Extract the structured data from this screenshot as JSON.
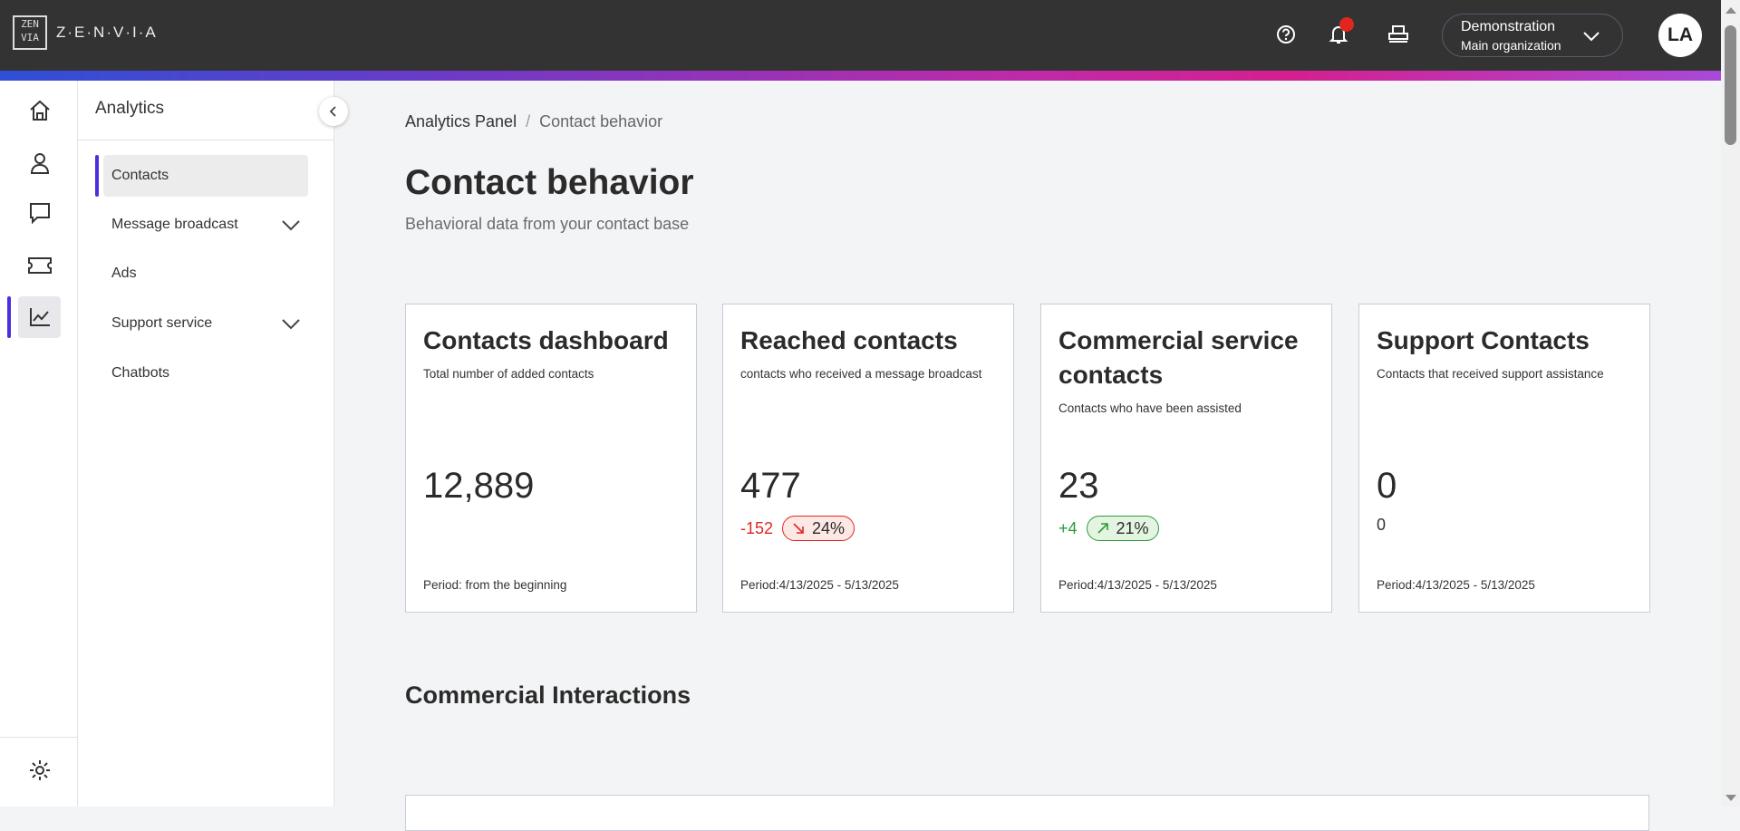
{
  "header": {
    "logo_mark": "ZEN VIA",
    "logo_text": "Z·E·N·V·I·A",
    "org_name": "Demonstration",
    "org_sub": "Main organization",
    "avatar_initials": "LA",
    "notification_dot_color": "#e0261f",
    "icons": [
      "help-icon",
      "bell-icon",
      "printer-icon",
      "chevron-down-icon"
    ]
  },
  "rail": {
    "items": [
      "home-icon",
      "user-icon",
      "chat-icon",
      "ticket-icon",
      "chart-icon",
      "gear-icon"
    ],
    "active": "chart-icon"
  },
  "sidebar": {
    "title": "Analytics",
    "items": [
      {
        "label": "Contacts",
        "active": true
      },
      {
        "label": "Message broadcast",
        "expandable": true
      },
      {
        "label": "Ads"
      },
      {
        "label": "Support service",
        "expandable": true
      },
      {
        "label": "Chatbots"
      }
    ]
  },
  "breadcrumb": {
    "parent": "Analytics Panel",
    "separator": "/",
    "current": "Contact behavior"
  },
  "page": {
    "title": "Contact behavior",
    "subtitle": "Behavioral data from your contact base"
  },
  "cards": [
    {
      "title": "Contacts dashboard",
      "desc": "Total number of added contacts",
      "value": "12,889",
      "period": "Period: from the beginning"
    },
    {
      "title": "Reached contacts",
      "desc": "contacts who received a message broadcast",
      "value": "477",
      "delta": "-152",
      "badge": "24%",
      "trend": "down",
      "period": "Period:4/13/2025 - 5/13/2025"
    },
    {
      "title": "Commercial service contacts",
      "desc": "Contacts who have been assisted",
      "value": "23",
      "delta": "+4",
      "badge": "21%",
      "trend": "up",
      "period": "Period:4/13/2025 - 5/13/2025"
    },
    {
      "title": "Support Contacts",
      "desc": "Contacts that received support assistance",
      "value": "0",
      "delta": "0",
      "period": "Period:4/13/2025 - 5/13/2025"
    }
  ],
  "section": {
    "title": "Commercial Interactions"
  },
  "colors": {
    "accent": "#4a2fe0",
    "negative": "#e0261f",
    "positive": "#2e9a3c",
    "topbar": "#333333"
  }
}
